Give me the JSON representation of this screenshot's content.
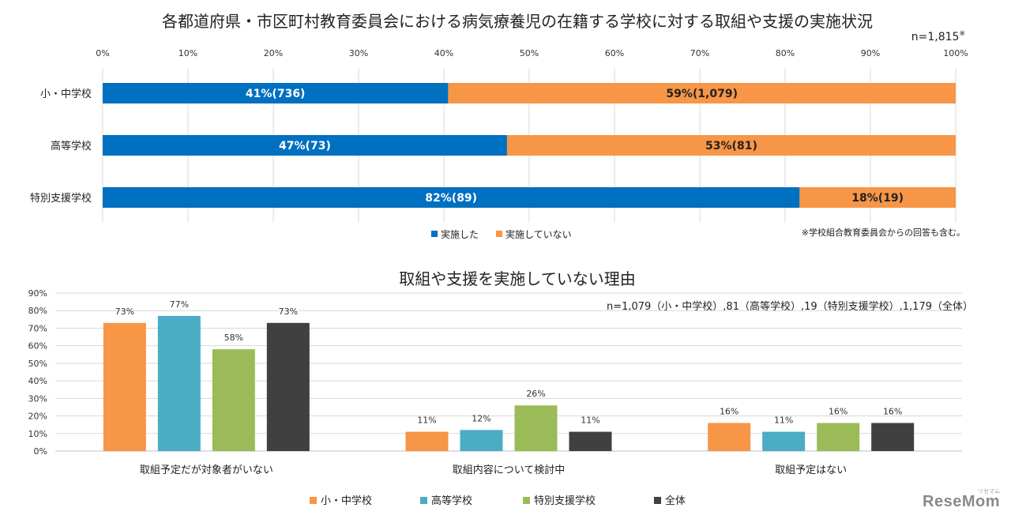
{
  "chart_data": [
    {
      "type": "bar",
      "orientation": "horizontal-stacked-percent",
      "title": "各都道府県・市区町村教育委員会における病気療養児の在籍する学校に対する取組や支援の実施状況",
      "n_label": "n=1,815",
      "n_mark": "※",
      "note": "※学校組合教育委員会からの回答も含む。",
      "xlim": [
        0,
        100
      ],
      "x_ticks": [
        "0%",
        "10%",
        "20%",
        "30%",
        "40%",
        "50%",
        "60%",
        "70%",
        "80%",
        "90%",
        "100%"
      ],
      "categories": [
        "小・中学校",
        "高等学校",
        "特別支援学校"
      ],
      "series": [
        {
          "name": "実施した",
          "color": "#0070c0",
          "values": [
            40.5,
            47.4,
            81.7
          ],
          "labels": [
            "41%(736)",
            "47%(73)",
            "82%(89)"
          ]
        },
        {
          "name": "実施していない",
          "color": "#f79646",
          "values": [
            59.5,
            52.6,
            18.3
          ],
          "labels": [
            "59%(1,079)",
            "53%(81)",
            "18%(19)"
          ]
        }
      ],
      "grid": true,
      "legend_position": "bottom"
    },
    {
      "type": "bar",
      "orientation": "vertical-grouped",
      "title": "取組や支援を実施していない理由",
      "n_label": "n=1,079（小・中学校）,81（高等学校）,19（特別支援学校）,1,179（全体）",
      "ylim": [
        0,
        90
      ],
      "y_ticks": [
        "0%",
        "10%",
        "20%",
        "30%",
        "40%",
        "50%",
        "60%",
        "70%",
        "80%",
        "90%"
      ],
      "categories": [
        "取組予定だが対象者がいない",
        "取組内容について検討中",
        "取組予定はない"
      ],
      "series": [
        {
          "name": "小・中学校",
          "color": "#f79646",
          "values": [
            73,
            11,
            16
          ],
          "labels": [
            "73%",
            "11%",
            "16%"
          ]
        },
        {
          "name": "高等学校",
          "color": "#4bacc6",
          "values": [
            77,
            12,
            11
          ],
          "labels": [
            "77%",
            "12%",
            "11%"
          ]
        },
        {
          "name": "特別支援学校",
          "color": "#9bbb59",
          "values": [
            58,
            26,
            16
          ],
          "labels": [
            "58%",
            "26%",
            "16%"
          ]
        },
        {
          "name": "全体",
          "color": "#404040",
          "values": [
            73,
            11,
            16
          ],
          "labels": [
            "73%",
            "11%",
            "16%"
          ]
        }
      ],
      "grid": true,
      "legend_position": "bottom"
    }
  ],
  "logo": {
    "text": "ReseMom",
    "kana": "リセマム"
  }
}
